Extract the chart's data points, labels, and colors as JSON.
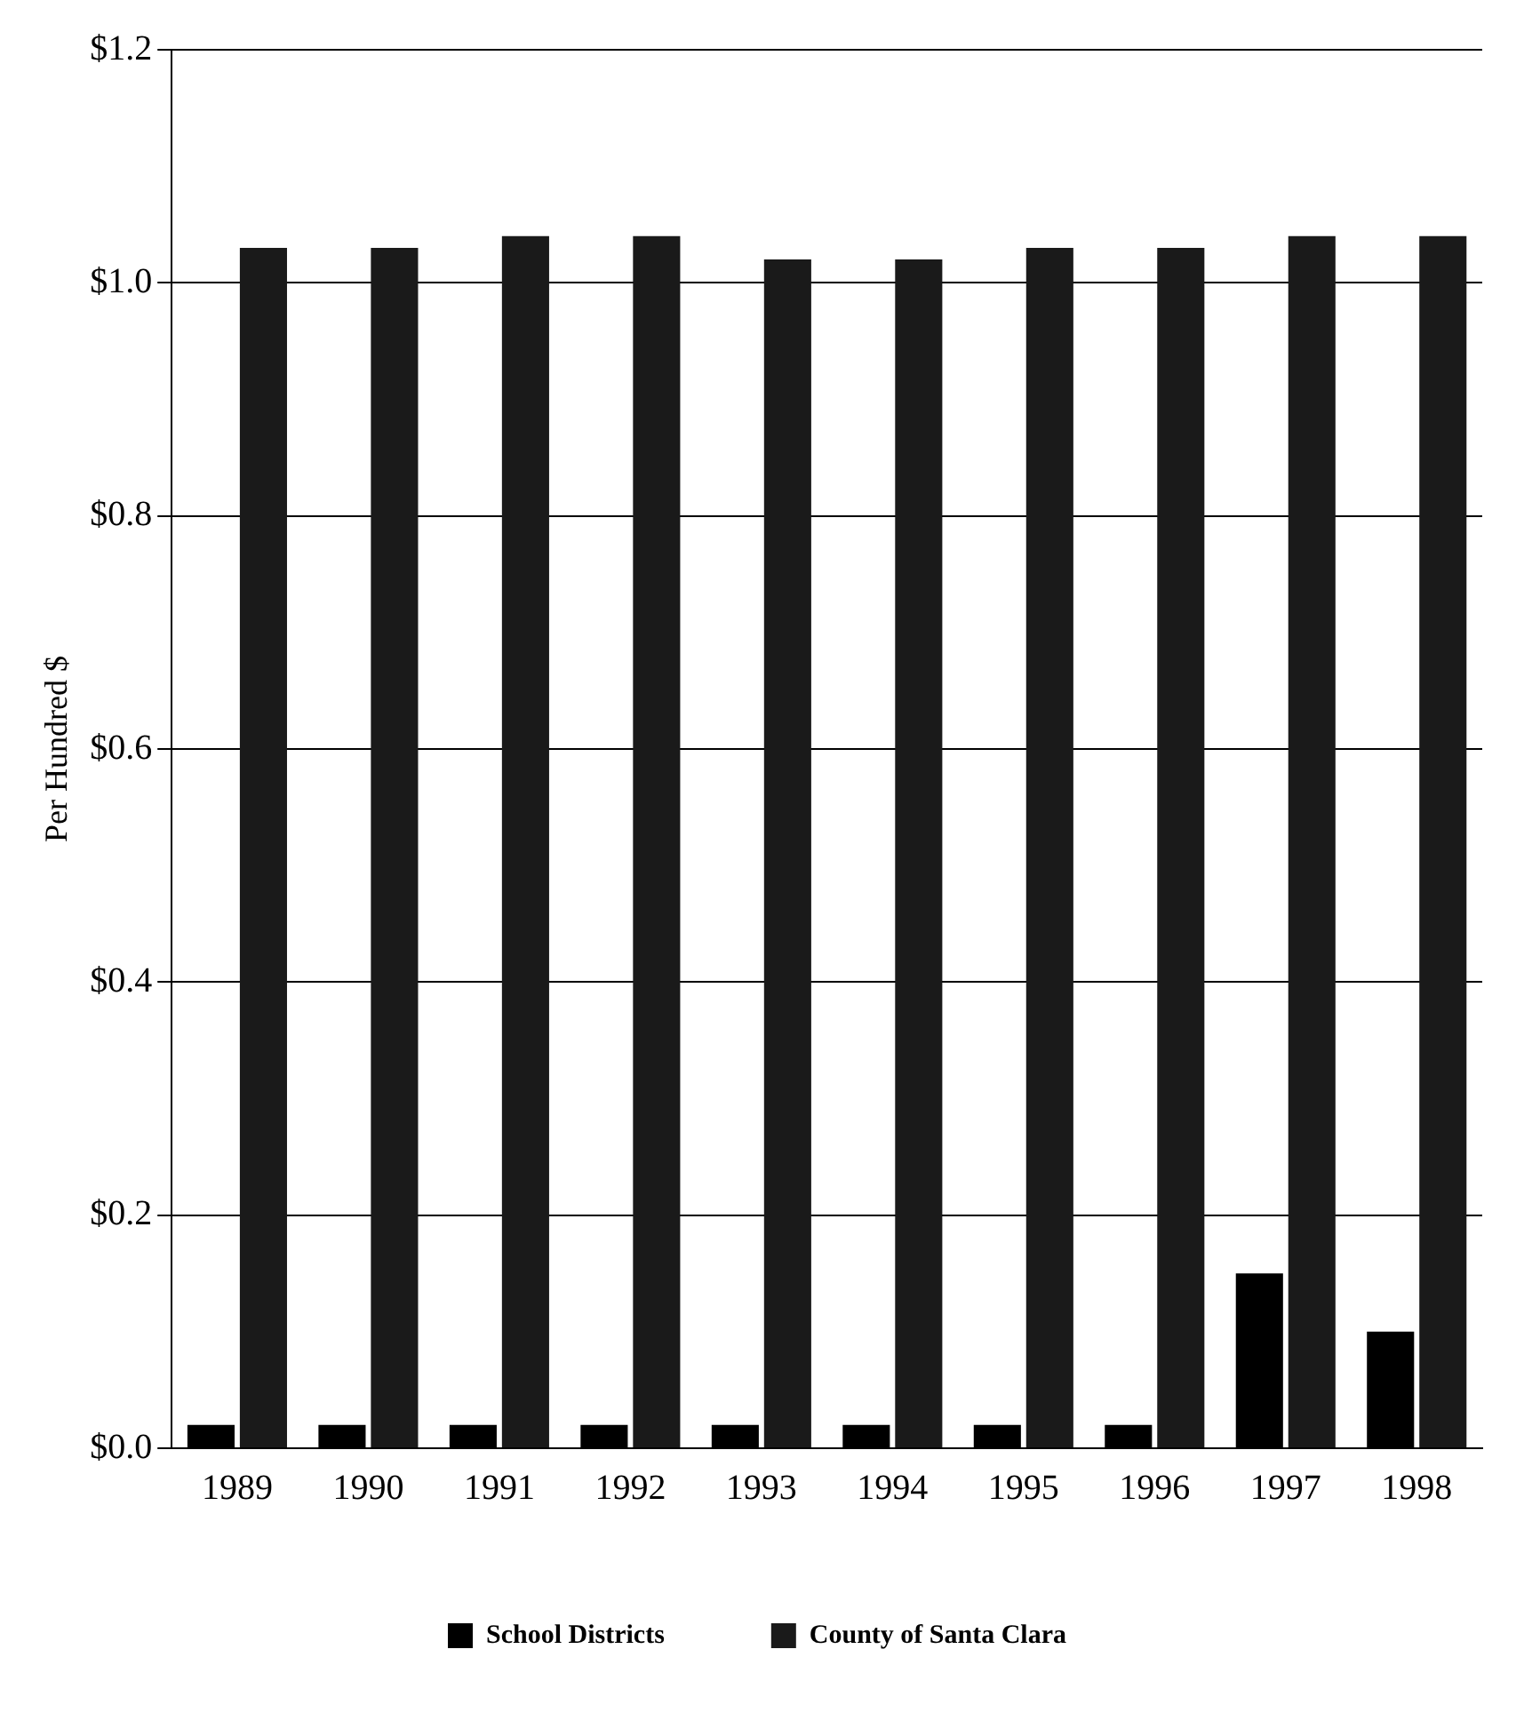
{
  "chart_data": {
    "type": "bar",
    "ylabel": "Per Hundred $",
    "categories": [
      "1989",
      "1990",
      "1991",
      "1992",
      "1993",
      "1994",
      "1995",
      "1996",
      "1997",
      "1998"
    ],
    "series": [
      {
        "name": "School Districts",
        "color": "#000000",
        "values": [
          0.02,
          0.02,
          0.02,
          0.02,
          0.02,
          0.02,
          0.02,
          0.02,
          0.15,
          0.1
        ]
      },
      {
        "name": "County of Santa Clara",
        "color": "#1a1a1a",
        "values": [
          1.03,
          1.03,
          1.04,
          1.04,
          1.02,
          1.02,
          1.03,
          1.03,
          1.04,
          1.04
        ]
      }
    ],
    "ylim": [
      0,
      1.2
    ],
    "yticks": [
      {
        "value": 0,
        "label": "$0.0"
      },
      {
        "value": 0.2,
        "label": "$0.2"
      },
      {
        "value": 0.4,
        "label": "$0.4"
      },
      {
        "value": 0.6,
        "label": "$0.6"
      },
      {
        "value": 0.8,
        "label": "$0.8"
      },
      {
        "value": 1.0,
        "label": "$1.0"
      },
      {
        "value": 1.2,
        "label": "$1.2"
      }
    ],
    "grid": "y",
    "legend": "bottom"
  }
}
